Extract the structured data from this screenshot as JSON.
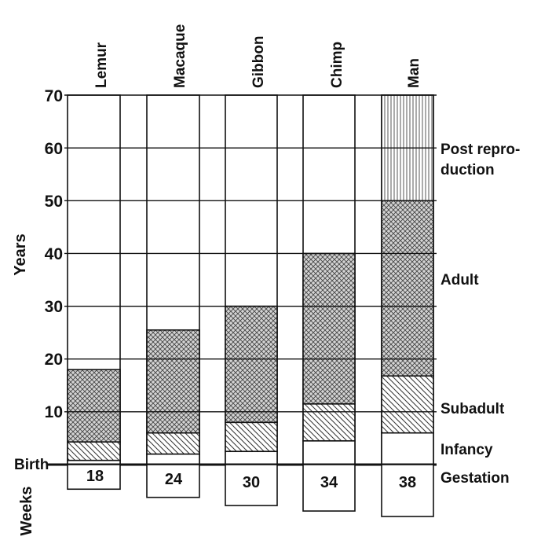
{
  "chart_data": {
    "type": "bar",
    "stacked": true,
    "categories": [
      "Lemur",
      "Macaque",
      "Gibbon",
      "Chimp",
      "Man"
    ],
    "ylabel": "Years",
    "ylim": [
      0,
      70
    ],
    "y_ticks": [
      "70",
      "60",
      "50",
      "40",
      "30",
      "20",
      "10"
    ],
    "birth_label": "Birth",
    "weeks_label": "Weeks",
    "grid": true,
    "phase_labels": {
      "post": "Post repro-",
      "post2": "duction",
      "adult": "Adult",
      "subadult": "Subadult",
      "infancy": "Infancy",
      "gestation": "Gestation"
    },
    "series": [
      {
        "name": "Infancy",
        "key": "infancy",
        "values": [
          0.8,
          2,
          2.5,
          4.5,
          6
        ]
      },
      {
        "name": "Subadult",
        "key": "subadult",
        "values": [
          3.5,
          4,
          5.5,
          7,
          10.8
        ]
      },
      {
        "name": "Adult",
        "key": "adult",
        "values": [
          13.7,
          19.5,
          22,
          28.5,
          33.2
        ]
      },
      {
        "name": "Post reproduction",
        "key": "post",
        "values": [
          0,
          0,
          0,
          0,
          20
        ]
      }
    ],
    "gestation_weeks": [
      18,
      24,
      30,
      34,
      38
    ],
    "gestation_labels": [
      "18",
      "24",
      "30",
      "34",
      "38"
    ]
  }
}
